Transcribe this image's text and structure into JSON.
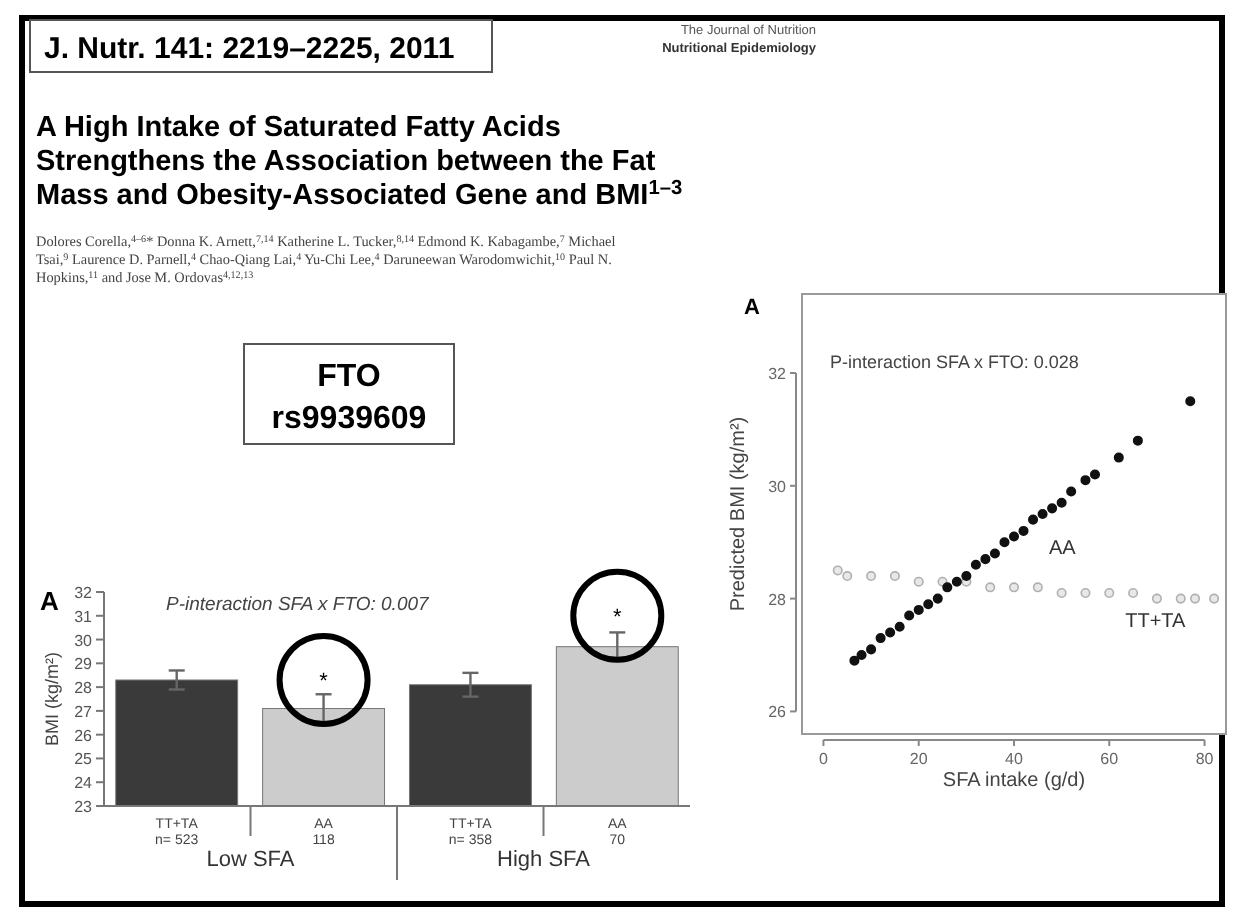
{
  "chart_data": [
    {
      "type": "other",
      "title": "A High Intake of Saturated Fatty Acids Strengthens the Association between the Fat Mass and Obesity-Associated Gene and BMI$^{1–3}$",
      "subtitle": "Dolores Corella,$^{4–6}$* Donna K. Arnett,$^{7,14}$ Katherine L. Tucker,$^{8,14}$ Edmond K. Kabagambe,$^{7}$ Michael Tsai,$^{9}$ Laurence D. Parnell,$^{4}$ Chao-Qiang Lai,$^{4}$ Yu-Chi Lee,$^{4}$ Daruneewan Warodomwichit,$^{10}$ Paul N. Hopkins,$^{11}$ and Jose M. Ordovas$^{4,12,13}$",
      "annotations": [
        "J. Nutr. 141: 2219–2225, 2011",
        "The Journal of Nutrition",
        "Nutritional Epidemiology",
        "FTO\nrs9939609"
      ]
    },
    {
      "type": "bar",
      "ylabel": "BMI (kg/m²)",
      "categories": [
        "TT+TA\nn= 523",
        "AA\n118",
        "TT+TA\nn= 358",
        "AA\n70"
      ],
      "values": [
        28.3,
        27.1,
        28.1,
        29.7
      ],
      "errors": [
        0.4,
        0.6,
        0.5,
        0.6
      ],
      "colors": [
        "#3a3a3a",
        "#cccccc",
        "#3a3a3a",
        "#cccccc"
      ],
      "ylim": [
        23,
        32
      ],
      "yticks": [
        23,
        24,
        25,
        26,
        27,
        28,
        29,
        30,
        31,
        32
      ],
      "annotations": [
        "A",
        "P-interaction SFA x FTO: 0.007",
        {
          "text": "*",
          "x": "AA\n118",
          "y": 28.3
        },
        {
          "text": "*",
          "x": "AA\n70",
          "y": 31.0
        },
        "Low SFA",
        "High SFA"
      ]
    },
    {
      "type": "scatter",
      "xlabel": "SFA intake (g/d)",
      "ylabel": "Predicted BMI (kg/m²)",
      "xlim": [
        -4.5,
        84.5
      ],
      "ylim": [
        25.6,
        33.4
      ],
      "xticks": [
        0,
        20,
        40,
        60,
        80
      ],
      "yticks": [
        26,
        28,
        30,
        32
      ],
      "marker": "circle",
      "annotations": [
        "A",
        "P-interaction SFA x FTO: 0.028"
      ],
      "series": [
        {
          "name": "TT+TA",
          "color": "#b0b0b0",
          "x": [
            3,
            5,
            10,
            15,
            20,
            25,
            30,
            35,
            40,
            45,
            50,
            55,
            60,
            65,
            70,
            75,
            78,
            82
          ],
          "values": [
            28.5,
            28.4,
            28.4,
            28.4,
            28.3,
            28.3,
            28.3,
            28.2,
            28.2,
            28.2,
            28.1,
            28.1,
            28.1,
            28.1,
            28.0,
            28.0,
            28.0,
            28.0
          ]
        },
        {
          "name": "AA",
          "color": "#111111",
          "x": [
            6.5,
            8,
            10,
            12,
            14,
            16,
            18,
            20,
            22,
            24,
            26,
            28,
            30,
            32,
            34,
            36,
            38,
            40,
            42,
            44,
            46,
            48,
            50,
            52,
            55,
            57,
            62,
            66,
            77
          ],
          "values": [
            26.9,
            27.0,
            27.1,
            27.3,
            27.4,
            27.5,
            27.7,
            27.8,
            27.9,
            28.0,
            28.2,
            28.3,
            28.4,
            28.6,
            28.7,
            28.8,
            29.0,
            29.1,
            29.2,
            29.4,
            29.5,
            29.6,
            29.7,
            29.9,
            30.1,
            30.2,
            30.5,
            30.8,
            31.5
          ]
        }
      ]
    }
  ]
}
